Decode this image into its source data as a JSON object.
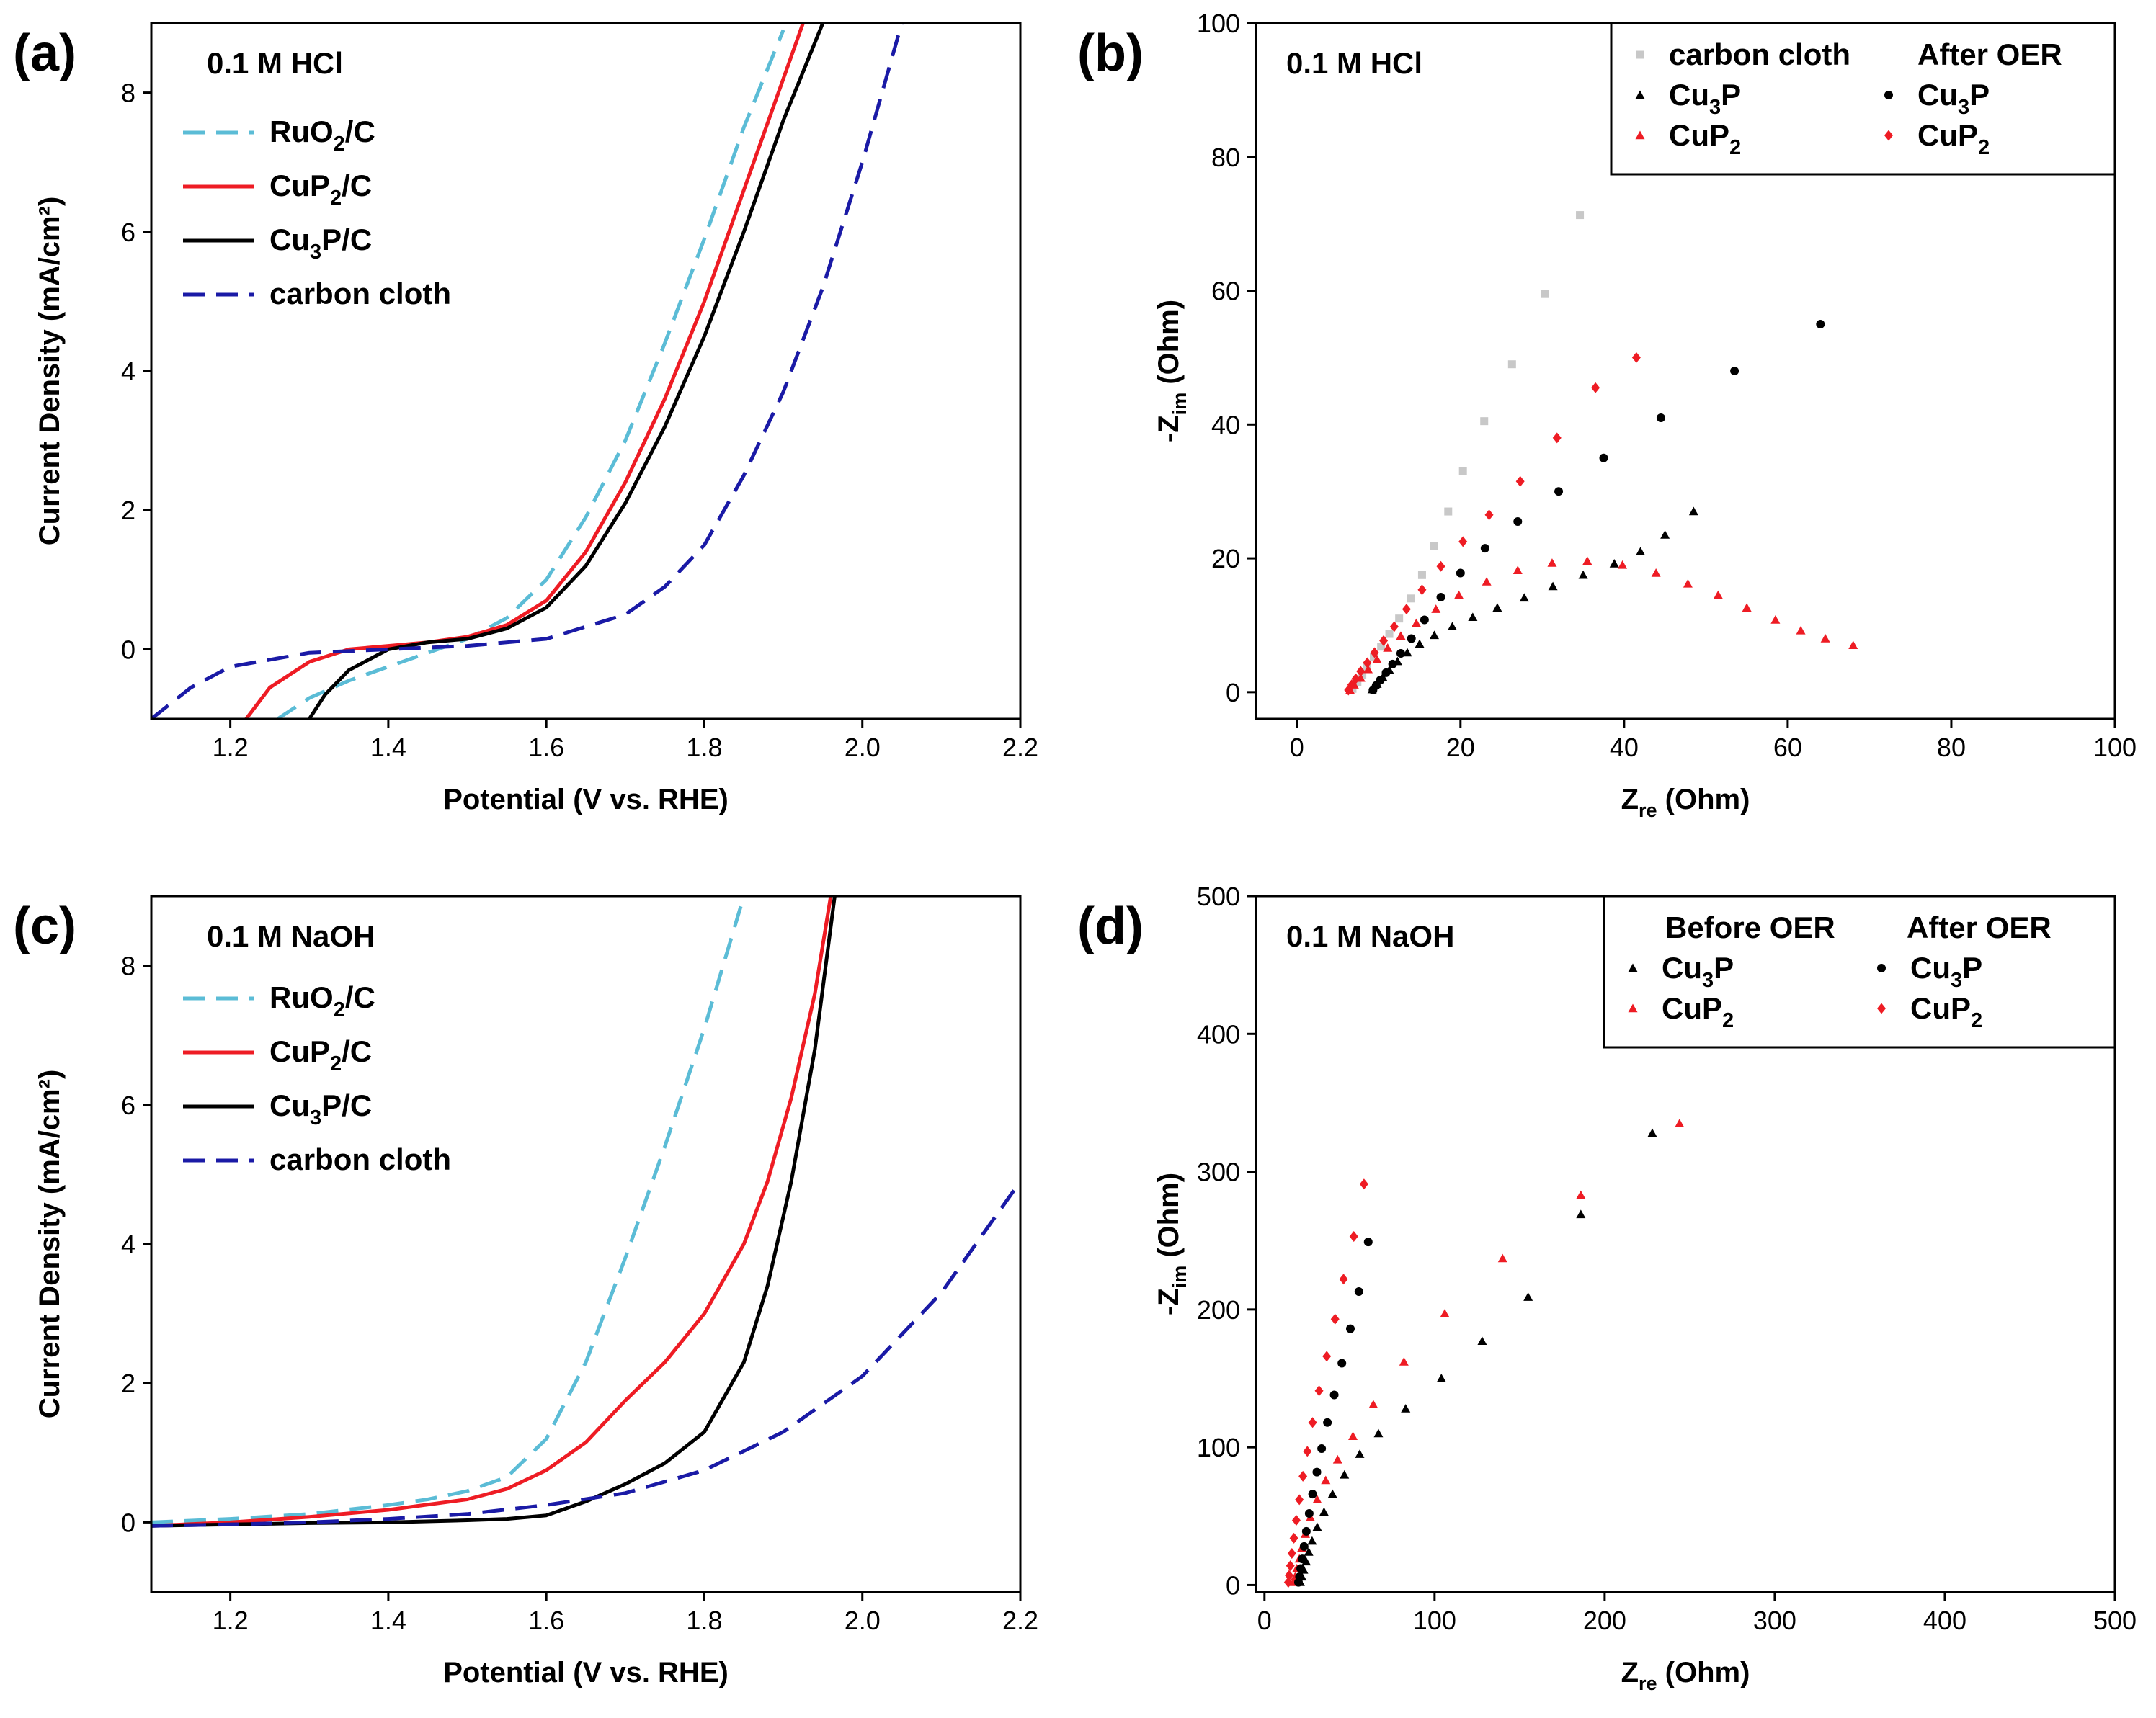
{
  "figure": {
    "panels": [
      "(a)",
      "(b)",
      "(c)",
      "(d)"
    ]
  },
  "chart_data": [
    {
      "id": "a",
      "panel_label": "(a)",
      "type": "line",
      "annotation": "0.1 M HCl",
      "xlabel": "Potential (V vs. RHE)",
      "ylabel": "Current Density (mA/cm²)",
      "xlim": [
        1.1,
        2.2
      ],
      "ylim": [
        -1,
        9
      ],
      "xticks": [
        1.2,
        1.4,
        1.6,
        1.8,
        2.0,
        2.2
      ],
      "yticks": [
        0,
        2,
        4,
        6,
        8
      ],
      "xtick_labels": [
        "1.2",
        "1.4",
        "1.6",
        "1.8",
        "2.0",
        "2.2"
      ],
      "ytick_labels": [
        "0",
        "2",
        "4",
        "6",
        "8"
      ],
      "legend_position": "top-left",
      "series": [
        {
          "name": "RuO2/C",
          "label": {
            "main": "RuO",
            "sub": "2",
            "tail": "/C"
          },
          "color": "#5bbcd6",
          "dash": true,
          "x": [
            1.26,
            1.3,
            1.35,
            1.4,
            1.45,
            1.5,
            1.55,
            1.6,
            1.65,
            1.7,
            1.75,
            1.8,
            1.85,
            1.9
          ],
          "y": [
            -1.0,
            -0.7,
            -0.45,
            -0.25,
            -0.05,
            0.15,
            0.45,
            1.0,
            1.9,
            3.0,
            4.4,
            5.9,
            7.5,
            8.9
          ]
        },
        {
          "name": "CuP2/C",
          "label": {
            "main": "CuP",
            "sub": "2",
            "tail": "/C"
          },
          "color": "#ee1c24",
          "dash": false,
          "x": [
            1.22,
            1.25,
            1.3,
            1.35,
            1.4,
            1.45,
            1.5,
            1.55,
            1.6,
            1.65,
            1.7,
            1.75,
            1.8,
            1.85,
            1.9,
            1.925
          ],
          "y": [
            -1.0,
            -0.55,
            -0.18,
            0.0,
            0.05,
            0.1,
            0.18,
            0.35,
            0.7,
            1.4,
            2.4,
            3.6,
            5.0,
            6.6,
            8.2,
            9.0
          ]
        },
        {
          "name": "Cu3P/C",
          "label": {
            "main": "Cu",
            "sub": "3",
            "tail": "P/C"
          },
          "color": "#000000",
          "dash": false,
          "x": [
            1.3,
            1.32,
            1.35,
            1.4,
            1.45,
            1.5,
            1.55,
            1.6,
            1.65,
            1.7,
            1.75,
            1.8,
            1.85,
            1.9,
            1.95
          ],
          "y": [
            -1.0,
            -0.65,
            -0.3,
            0.0,
            0.1,
            0.15,
            0.3,
            0.6,
            1.2,
            2.1,
            3.2,
            4.5,
            6.0,
            7.6,
            9.0
          ]
        },
        {
          "name": "carbon cloth",
          "label": {
            "main": "carbon cloth",
            "sub": "",
            "tail": ""
          },
          "color": "#1a1aa6",
          "dash": true,
          "x": [
            1.1,
            1.15,
            1.2,
            1.3,
            1.4,
            1.5,
            1.6,
            1.7,
            1.75,
            1.8,
            1.85,
            1.9,
            1.95,
            2.0,
            2.05
          ],
          "y": [
            -1.0,
            -0.55,
            -0.25,
            -0.05,
            0.0,
            0.05,
            0.15,
            0.5,
            0.9,
            1.5,
            2.5,
            3.7,
            5.2,
            7.0,
            9.0
          ]
        }
      ]
    },
    {
      "id": "b",
      "panel_label": "(b)",
      "type": "scatter",
      "annotation": "0.1 M HCl",
      "xlabel": {
        "main": "Z",
        "sub": "re",
        "tail": " (Ohm)"
      },
      "ylabel": {
        "main": "-Z",
        "sub": "im",
        "tail": " (Ohm)"
      },
      "xlim": [
        -5,
        100
      ],
      "ylim": [
        -4,
        100
      ],
      "xticks": [
        0,
        20,
        40,
        60,
        80,
        100
      ],
      "yticks": [
        0,
        20,
        40,
        60,
        80,
        100
      ],
      "xtick_labels": [
        "0",
        "20",
        "40",
        "60",
        "80",
        "100"
      ],
      "ytick_labels": [
        "0",
        "20",
        "40",
        "60",
        "80",
        "100"
      ],
      "legend_position": "top-right",
      "legend_header_right": "After OER",
      "series": [
        {
          "name": "carbon cloth",
          "label": {
            "main": "carbon cloth",
            "sub": "",
            "tail": ""
          },
          "color": "#c8c8c8",
          "marker": "square",
          "x": [
            6.8,
            7.4,
            8.0,
            8.6,
            9.4,
            10.3,
            11.3,
            12.5,
            13.9,
            15.3,
            16.8,
            18.5,
            20.3,
            22.9,
            26.3,
            30.3,
            34.6
          ],
          "y": [
            0.5,
            1.5,
            2.6,
            3.8,
            5.2,
            6.8,
            8.7,
            11.0,
            14.0,
            17.5,
            21.8,
            27.0,
            33.0,
            40.5,
            49.0,
            59.5,
            71.3
          ]
        },
        {
          "name": "Cu3P",
          "label": {
            "main": "Cu",
            "sub": "3",
            "tail": "P"
          },
          "color": "#000000",
          "marker": "triangle",
          "x": [
            9.2,
            9.8,
            10.5,
            11.3,
            12.3,
            13.5,
            15.0,
            16.8,
            19.0,
            21.5,
            24.5,
            27.8,
            31.3,
            35.0,
            38.8,
            42.0,
            45.0,
            48.5
          ],
          "y": [
            0.4,
            1.2,
            2.2,
            3.3,
            4.6,
            5.9,
            7.2,
            8.5,
            9.8,
            11.2,
            12.6,
            14.1,
            15.8,
            17.5,
            19.2,
            21.0,
            23.5,
            27.0
          ]
        },
        {
          "name": "CuP2",
          "label": {
            "main": "CuP",
            "sub": "2",
            "tail": ""
          },
          "color": "#ee1c24",
          "marker": "triangle",
          "x": [
            6.5,
            7.0,
            7.8,
            8.7,
            9.8,
            11.1,
            12.7,
            14.6,
            17.0,
            19.8,
            23.2,
            27.0,
            31.2,
            35.5,
            39.8,
            43.9,
            47.8,
            51.5,
            55.0,
            58.5,
            61.6,
            64.6,
            68.0
          ],
          "y": [
            0.3,
            1.1,
            2.1,
            3.4,
            4.9,
            6.6,
            8.4,
            10.3,
            12.4,
            14.5,
            16.5,
            18.2,
            19.3,
            19.6,
            19.0,
            17.8,
            16.2,
            14.5,
            12.6,
            10.8,
            9.2,
            8.0,
            7.0
          ]
        },
        {
          "name": "Cu3P after OER",
          "label": {
            "main": "Cu",
            "sub": "3",
            "tail": "P"
          },
          "color": "#000000",
          "marker": "circle",
          "x": [
            9.3,
            9.7,
            10.2,
            10.9,
            11.7,
            12.7,
            14.0,
            15.6,
            17.6,
            20.0,
            23.0,
            27.0,
            32.0,
            37.5,
            44.5,
            53.5,
            64.0
          ],
          "y": [
            0.3,
            1.0,
            1.8,
            2.9,
            4.2,
            5.8,
            8.0,
            10.8,
            14.2,
            17.8,
            21.5,
            25.5,
            30.0,
            35.0,
            41.0,
            48.0,
            55.0
          ]
        },
        {
          "name": "CuP2 after OER",
          "label": {
            "main": "CuP",
            "sub": "2",
            "tail": ""
          },
          "color": "#ee1c24",
          "marker": "diamond",
          "x": [
            6.3,
            6.7,
            7.2,
            7.8,
            8.6,
            9.5,
            10.6,
            11.9,
            13.4,
            15.3,
            17.6,
            20.3,
            23.5,
            27.3,
            31.8,
            36.5,
            41.5
          ],
          "y": [
            0.3,
            1.1,
            2.0,
            3.1,
            4.4,
            5.9,
            7.7,
            9.8,
            12.4,
            15.3,
            18.8,
            22.5,
            26.5,
            31.5,
            38.0,
            45.5,
            50.0
          ]
        }
      ]
    },
    {
      "id": "c",
      "panel_label": "(c)",
      "type": "line",
      "annotation": "0.1 M NaOH",
      "xlabel": "Potential (V vs. RHE)",
      "ylabel": "Current Density (mA/cm²)",
      "xlim": [
        1.1,
        2.2
      ],
      "ylim": [
        -1,
        9
      ],
      "xticks": [
        1.2,
        1.4,
        1.6,
        1.8,
        2.0,
        2.2
      ],
      "yticks": [
        0,
        2,
        4,
        6,
        8
      ],
      "xtick_labels": [
        "1.2",
        "1.4",
        "1.6",
        "1.8",
        "2.0",
        "2.2"
      ],
      "ytick_labels": [
        "0",
        "2",
        "4",
        "6",
        "8"
      ],
      "legend_position": "top-left",
      "series": [
        {
          "name": "RuO2/C",
          "label": {
            "main": "RuO",
            "sub": "2",
            "tail": "/C"
          },
          "color": "#5bbcd6",
          "dash": true,
          "x": [
            1.1,
            1.2,
            1.3,
            1.4,
            1.45,
            1.5,
            1.55,
            1.6,
            1.65,
            1.7,
            1.75,
            1.8,
            1.85
          ],
          "y": [
            0.0,
            0.05,
            0.12,
            0.25,
            0.33,
            0.45,
            0.65,
            1.2,
            2.3,
            3.8,
            5.4,
            7.1,
            9.0
          ]
        },
        {
          "name": "CuP2/C",
          "label": {
            "main": "CuP",
            "sub": "2",
            "tail": "/C"
          },
          "color": "#ee1c24",
          "dash": false,
          "x": [
            1.1,
            1.2,
            1.3,
            1.4,
            1.5,
            1.55,
            1.6,
            1.65,
            1.7,
            1.75,
            1.8,
            1.85,
            1.88,
            1.91,
            1.94,
            1.96
          ],
          "y": [
            -0.05,
            0.0,
            0.08,
            0.18,
            0.33,
            0.48,
            0.75,
            1.15,
            1.75,
            2.3,
            3.0,
            4.0,
            4.9,
            6.1,
            7.6,
            9.0
          ]
        },
        {
          "name": "Cu3P/C",
          "label": {
            "main": "Cu",
            "sub": "3",
            "tail": "P/C"
          },
          "color": "#000000",
          "dash": false,
          "x": [
            1.1,
            1.2,
            1.3,
            1.4,
            1.5,
            1.55,
            1.6,
            1.65,
            1.7,
            1.75,
            1.8,
            1.85,
            1.88,
            1.91,
            1.94,
            1.965
          ],
          "y": [
            -0.05,
            -0.03,
            -0.01,
            0.0,
            0.03,
            0.05,
            0.1,
            0.3,
            0.55,
            0.85,
            1.3,
            2.3,
            3.4,
            4.9,
            6.8,
            9.0
          ]
        },
        {
          "name": "carbon cloth",
          "label": {
            "main": "carbon cloth",
            "sub": "",
            "tail": ""
          },
          "color": "#1a1aa6",
          "dash": true,
          "x": [
            1.1,
            1.2,
            1.3,
            1.4,
            1.5,
            1.6,
            1.7,
            1.8,
            1.9,
            2.0,
            2.05,
            2.1,
            2.15,
            2.2
          ],
          "y": [
            -0.05,
            -0.03,
            0.0,
            0.05,
            0.12,
            0.25,
            0.42,
            0.75,
            1.3,
            2.1,
            2.7,
            3.3,
            4.1,
            4.9
          ]
        }
      ]
    },
    {
      "id": "d",
      "panel_label": "(d)",
      "type": "scatter",
      "annotation": "0.1 M NaOH",
      "xlabel": {
        "main": "Z",
        "sub": "re",
        "tail": " (Ohm)"
      },
      "ylabel": {
        "main": "-Z",
        "sub": "im",
        "tail": " (Ohm)"
      },
      "xlim": [
        -5,
        500
      ],
      "ylim": [
        -5,
        500
      ],
      "xticks": [
        0,
        100,
        200,
        300,
        400,
        500
      ],
      "yticks": [
        0,
        100,
        200,
        300,
        400,
        500
      ],
      "xtick_labels": [
        "0",
        "100",
        "200",
        "300",
        "400",
        "500"
      ],
      "ytick_labels": [
        "0",
        "100",
        "200",
        "300",
        "400",
        "500"
      ],
      "legend_position": "top-right",
      "legend_header_left": "Before OER",
      "legend_header_right": "After OER",
      "series": [
        {
          "name": "Cu3P",
          "label": {
            "main": "Cu",
            "sub": "3",
            "tail": "P"
          },
          "color": "#000000",
          "marker": "triangle",
          "x": [
            21,
            22,
            23,
            24.5,
            26,
            28,
            31,
            35,
            40,
            47,
            56,
            67,
            83,
            104,
            128,
            155,
            186,
            228
          ],
          "y": [
            2,
            6,
            11,
            17,
            24,
            32,
            42,
            53,
            66,
            80,
            95,
            110,
            128,
            150,
            177,
            209,
            269,
            328
          ]
        },
        {
          "name": "CuP2",
          "label": {
            "main": "CuP",
            "sub": "2",
            "tail": ""
          },
          "color": "#ee1c24",
          "marker": "triangle",
          "x": [
            17,
            18,
            19,
            20.5,
            22,
            24,
            27,
            31,
            36,
            43,
            52,
            64,
            82,
            106,
            140,
            186,
            244
          ],
          "y": [
            2,
            6,
            12,
            19,
            27,
            37,
            49,
            62,
            76,
            91,
            108,
            131,
            162,
            197,
            237,
            283,
            335
          ]
        },
        {
          "name": "Cu3P after OER",
          "label": {
            "main": "Cu",
            "sub": "3",
            "tail": "P"
          },
          "color": "#000000",
          "marker": "circle",
          "x": [
            20,
            20.6,
            21.3,
            22.2,
            23.3,
            24.6,
            26.3,
            28.3,
            30.8,
            33.6,
            37,
            41,
            45.5,
            50.5,
            55.5,
            61
          ],
          "y": [
            2,
            6,
            12,
            19,
            28,
            39,
            52,
            66,
            82,
            99,
            118,
            138,
            161,
            186,
            213,
            249
          ]
        },
        {
          "name": "CuP2 after OER",
          "label": {
            "main": "CuP",
            "sub": "2",
            "tail": ""
          },
          "color": "#ee1c24",
          "marker": "diamond",
          "x": [
            14,
            14.5,
            15.2,
            16.1,
            17.3,
            18.7,
            20.5,
            22.6,
            25.2,
            28.3,
            32.1,
            36.6,
            41.5,
            46.5,
            52.5,
            58.5
          ],
          "y": [
            2,
            7,
            14,
            23,
            34,
            47,
            62,
            79,
            97,
            118,
            141,
            166,
            193,
            222,
            253,
            291
          ]
        }
      ]
    }
  ]
}
